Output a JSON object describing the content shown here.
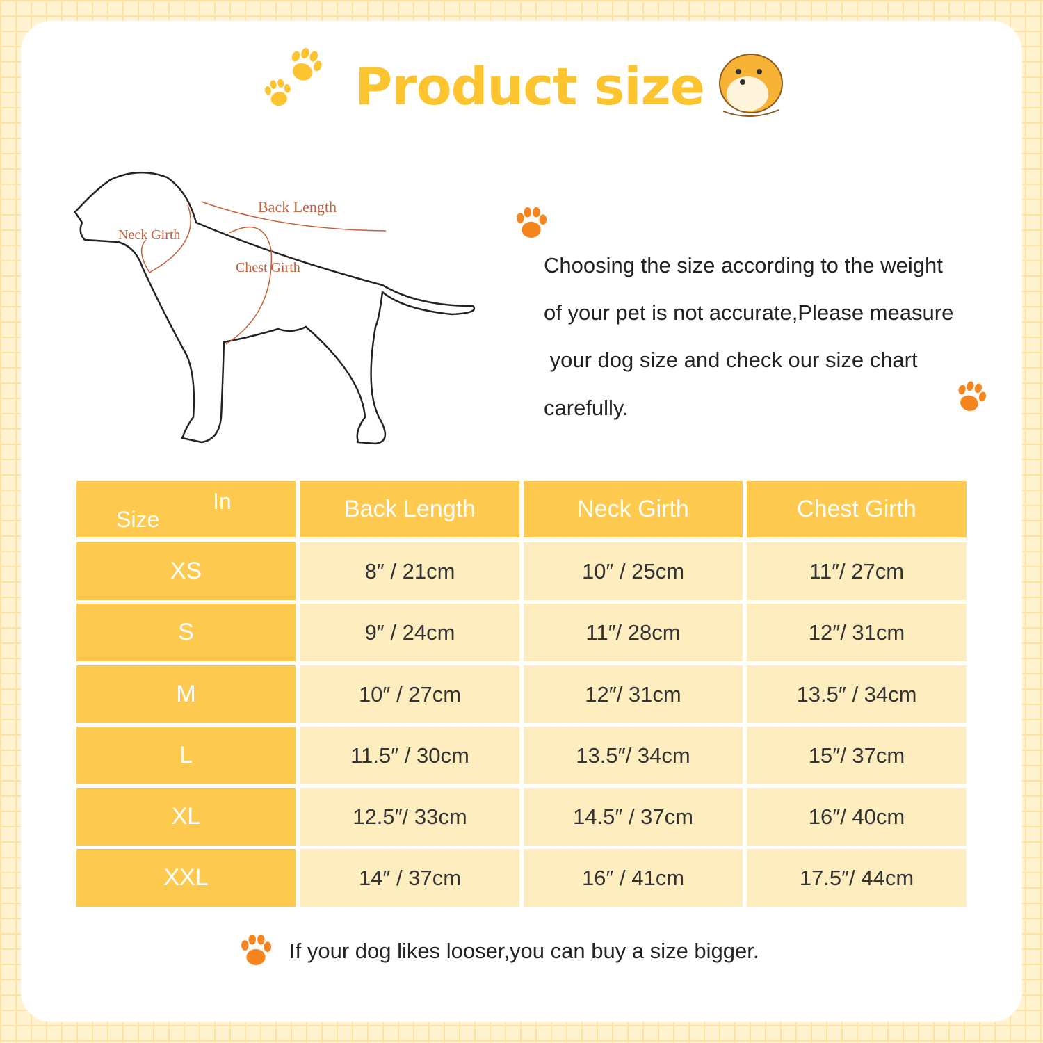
{
  "header": {
    "title": "Product size"
  },
  "diagram": {
    "back_length": "Back Length",
    "neck_girth": "Neck Girth",
    "chest_girth": "Chest Girth"
  },
  "note": {
    "lines": [
      "Choosing the size according to the weight",
      "of your pet is not accurate,Please measure",
      " your dog size and check our size chart",
      "carefully."
    ]
  },
  "table": {
    "corner": {
      "top": "In",
      "bottom": "Size"
    },
    "columns": [
      "Back Length",
      "Neck Girth",
      "Chest Girth"
    ],
    "rows": [
      [
        "XS",
        "8″ / 21cm",
        "10″ / 25cm",
        "11″/ 27cm"
      ],
      [
        "S",
        "9″ / 24cm",
        "11″/ 28cm",
        "12″/ 31cm"
      ],
      [
        "M",
        "10″ / 27cm",
        "12″/ 31cm",
        "13.5″ / 34cm"
      ],
      [
        "L",
        "11.5″ / 30cm",
        "13.5″/ 34cm",
        "15″/ 37cm"
      ],
      [
        "XL",
        "12.5″/ 33cm",
        "14.5″ / 37cm",
        "16″/ 40cm"
      ],
      [
        "XXL",
        "14″ / 37cm",
        "16″ / 41cm",
        "17.5″/ 44cm"
      ]
    ]
  },
  "footer": {
    "text": "If your dog likes looser,you can buy a size bigger."
  }
}
